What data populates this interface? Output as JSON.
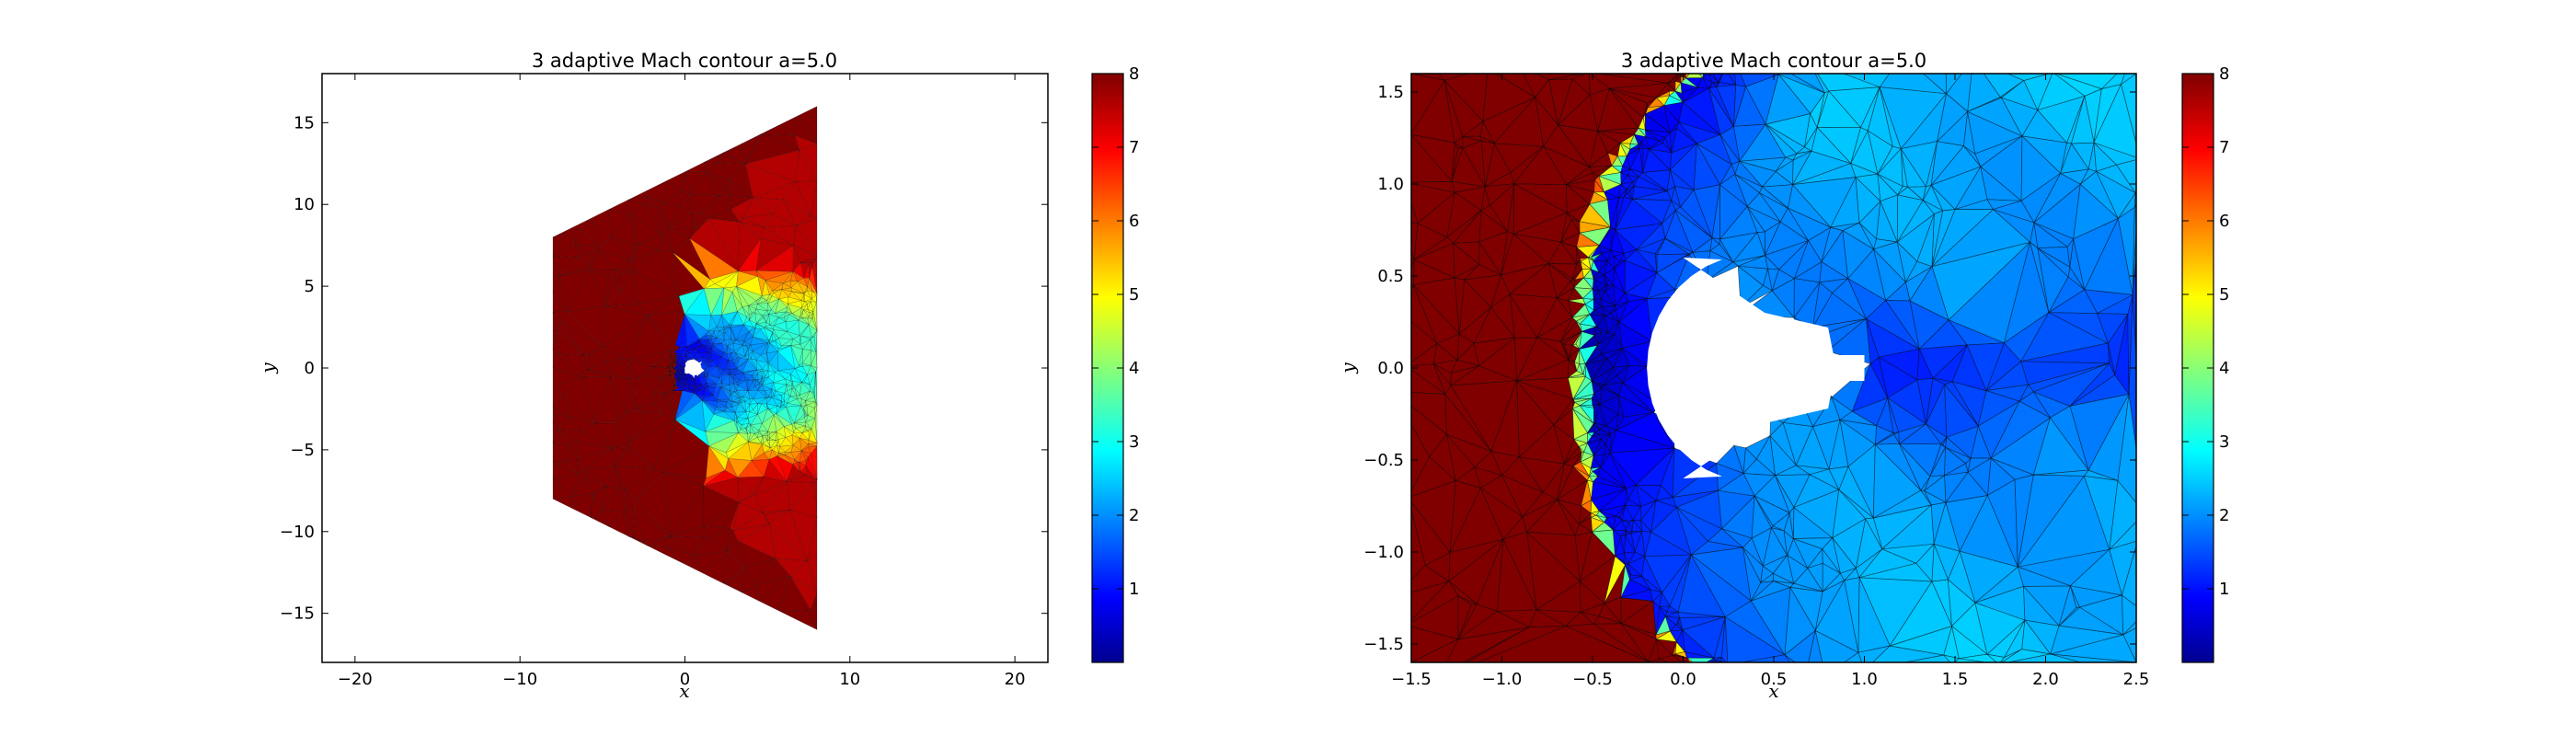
{
  "chart_data": [
    {
      "type": "heatmap",
      "subtype": "triangular-mesh-contour",
      "title": "3 adaptive Mach contour a=5.0",
      "xlabel": "x",
      "ylabel": "y",
      "xlim": [
        -22,
        22
      ],
      "ylim": [
        -18,
        18
      ],
      "xticks": [
        -20,
        -10,
        0,
        10,
        20
      ],
      "yticks": [
        -15,
        -10,
        -5,
        0,
        5,
        10,
        15
      ],
      "domain_polygon": [
        [
          -8,
          8
        ],
        [
          8,
          16
        ],
        [
          8,
          -16
        ],
        [
          -8,
          -8
        ]
      ],
      "colorbar": {
        "min": 0,
        "max": 8,
        "ticks": [
          1,
          2,
          3,
          4,
          5,
          6,
          7,
          8
        ]
      },
      "field": "Mach number",
      "freestream_value": 8
    },
    {
      "type": "heatmap",
      "subtype": "triangular-mesh-contour",
      "title": "3 adaptive Mach contour a=5.0",
      "xlabel": "x",
      "ylabel": "y",
      "xlim": [
        -1.5,
        2.5
      ],
      "ylim": [
        -1.6,
        1.6
      ],
      "xticks": [
        -1.5,
        -1.0,
        -0.5,
        0.0,
        0.5,
        1.0,
        1.5,
        2.0,
        2.5
      ],
      "yticks": [
        -1.5,
        -1.0,
        -0.5,
        0.0,
        0.5,
        1.0,
        1.5
      ],
      "colorbar": {
        "min": 0,
        "max": 8,
        "ticks": [
          1,
          2,
          3,
          4,
          5,
          6,
          7,
          8
        ]
      },
      "field": "Mach number",
      "freestream_value": 8
    }
  ],
  "colormap": [
    "#00008f",
    "#0000ff",
    "#0080ff",
    "#00ffff",
    "#80ff80",
    "#ffff00",
    "#ff8000",
    "#ff0000",
    "#800000"
  ],
  "plots": [
    {
      "id": "left"
    },
    {
      "id": "right"
    }
  ],
  "tick_text": {
    "left_x": [
      "−20",
      "−10",
      "0",
      "10",
      "20"
    ],
    "left_y": [
      "−15",
      "−10",
      "−5",
      "0",
      "5",
      "10",
      "15"
    ],
    "right_x": [
      "−1.5",
      "−1.0",
      "−0.5",
      "0.0",
      "0.5",
      "1.0",
      "1.5",
      "2.0",
      "2.5"
    ],
    "right_y": [
      "−1.5",
      "−1.0",
      "−0.5",
      "0.0",
      "0.5",
      "1.0",
      "1.5"
    ],
    "colorbar": [
      "1",
      "2",
      "3",
      "4",
      "5",
      "6",
      "7",
      "8"
    ]
  }
}
